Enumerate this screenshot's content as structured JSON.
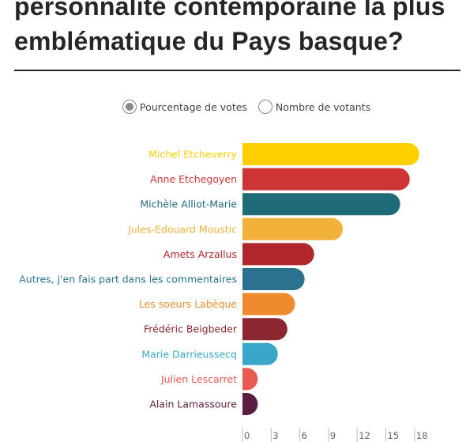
{
  "title": "personnalité contemporaine la plus emblématique du Pays basque?",
  "mode_toggle": {
    "options": [
      {
        "label": "Pourcentage de votes",
        "selected": true
      },
      {
        "label": "Nombre de votants",
        "selected": false
      }
    ]
  },
  "chart_data": {
    "type": "bar",
    "orientation": "horizontal",
    "title": "",
    "xlabel": "",
    "ylabel": "",
    "xlim": [
      0,
      18
    ],
    "ticks": [
      "0",
      "3",
      "6",
      "9",
      "12",
      "15",
      "18"
    ],
    "grid": false,
    "categories": [
      "Michel Etcheverry",
      "Anne Etchegoyen",
      "Michèle Alliot-Marie",
      "Jules-Edouard Moustic",
      "Amets Arzallus",
      "Autres, j'en fais part dans les commentaires",
      "Les soeurs Labèque",
      "Frédéric Beigbeder",
      "Marie Darrieussecq",
      "Julien Lescarret",
      "Alain Lamassoure"
    ],
    "values": [
      18.5,
      17.5,
      16.5,
      10.5,
      7.5,
      6.5,
      5.5,
      4.7,
      3.7,
      1.6,
      1.6
    ],
    "colors": [
      "#ffd000",
      "#cf3434",
      "#1f6b78",
      "#f2b13a",
      "#b0262a",
      "#2b7290",
      "#f08a2e",
      "#8b2630",
      "#3aa7c9",
      "#e85a52",
      "#5c1e40"
    ]
  }
}
